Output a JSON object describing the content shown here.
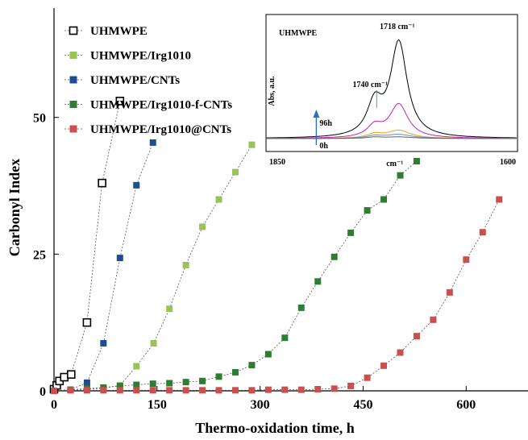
{
  "chart_data": [
    {
      "type": "scatter",
      "title": "",
      "xlabel": "Thermo-oxidation time, h",
      "ylabel": "Carbonyl Index",
      "xlim": [
        0,
        690
      ],
      "ylim": [
        0,
        70
      ],
      "x_ticks": [
        0,
        150,
        300,
        450,
        600
      ],
      "y_ticks": [
        0,
        25,
        50
      ],
      "grid": false,
      "legend_position": "top-left",
      "series": [
        {
          "name": "UHMWPE",
          "color": "#000000",
          "marker": "open-square",
          "points": [
            [
              0,
              0.3
            ],
            [
              4,
              1
            ],
            [
              8,
              1.8
            ],
            [
              15,
              2.5
            ],
            [
              25,
              3
            ],
            [
              48,
              12.5
            ],
            [
              70,
              38
            ],
            [
              96,
              53
            ]
          ]
        },
        {
          "name": "UHMWPE/Irg1010",
          "color": "#99c259",
          "marker": "filled-square",
          "points": [
            [
              0,
              0
            ],
            [
              24,
              0.2
            ],
            [
              48,
              0.3
            ],
            [
              72,
              0.5
            ],
            [
              96,
              1
            ],
            [
              120,
              4.5
            ],
            [
              145,
              8.7
            ],
            [
              168,
              15
            ],
            [
              192,
              23
            ],
            [
              216,
              30
            ],
            [
              240,
              35
            ],
            [
              264,
              40
            ],
            [
              288,
              45
            ]
          ]
        },
        {
          "name": "UHMWPE/CNTs",
          "color": "#1f4e8c",
          "marker": "filled-square",
          "points": [
            [
              0,
              0
            ],
            [
              24,
              0.2
            ],
            [
              48,
              1.5
            ],
            [
              72,
              8.7
            ],
            [
              96,
              24.3
            ],
            [
              120,
              37.6
            ],
            [
              144,
              45.4
            ]
          ]
        },
        {
          "name": "UHMWPE/Irg1010-f-CNTs",
          "color": "#2e7d32",
          "marker": "filled-square",
          "points": [
            [
              0,
              0
            ],
            [
              24,
              0.2
            ],
            [
              48,
              0.4
            ],
            [
              72,
              0.6
            ],
            [
              96,
              0.9
            ],
            [
              120,
              1.1
            ],
            [
              144,
              1.3
            ],
            [
              168,
              1.4
            ],
            [
              192,
              1.6
            ],
            [
              216,
              1.8
            ],
            [
              240,
              2.6
            ],
            [
              264,
              3.4
            ],
            [
              288,
              4.7
            ],
            [
              312,
              6.7
            ],
            [
              336,
              9.7
            ],
            [
              360,
              15.2
            ],
            [
              384,
              20
            ],
            [
              408,
              24.5
            ],
            [
              432,
              28.9
            ],
            [
              456,
              33
            ],
            [
              480,
              35
            ],
            [
              504,
              39.4
            ],
            [
              528,
              42
            ]
          ]
        },
        {
          "name": "UHMWPE/Irg1010@CNTs",
          "color": "#c9504e",
          "marker": "filled-square",
          "points": [
            [
              0,
              0
            ],
            [
              24,
              0.1
            ],
            [
              48,
              0.1
            ],
            [
              72,
              0.1
            ],
            [
              96,
              0.1
            ],
            [
              120,
              0.1
            ],
            [
              144,
              0.1
            ],
            [
              168,
              0.1
            ],
            [
              192,
              0.1
            ],
            [
              216,
              0.1
            ],
            [
              240,
              0.1
            ],
            [
              264,
              0.1
            ],
            [
              288,
              0.1
            ],
            [
              312,
              0.2
            ],
            [
              336,
              0.2
            ],
            [
              360,
              0.2
            ],
            [
              384,
              0.3
            ],
            [
              408,
              0.4
            ],
            [
              432,
              0.9
            ],
            [
              456,
              2.4
            ],
            [
              480,
              4.6
            ],
            [
              504,
              7
            ],
            [
              528,
              10
            ],
            [
              552,
              13
            ],
            [
              576,
              18
            ],
            [
              600,
              24
            ],
            [
              624,
              29
            ],
            [
              648,
              35
            ]
          ]
        }
      ]
    },
    {
      "type": "line",
      "title": "UHMWPE",
      "xlabel": "cm⁻¹",
      "ylabel": "Abs, a.u.",
      "x_axis_reversed": true,
      "xlim": [
        1850,
        1600
      ],
      "x_tick_labels": [
        "1850",
        "1600"
      ],
      "annotations": [
        {
          "text": "1718 cm⁻¹",
          "x": 1718
        },
        {
          "text": "1740 cm⁻¹",
          "x": 1740
        },
        {
          "text": "96h"
        },
        {
          "text": "0h"
        }
      ],
      "series_colors": [
        "#000000",
        "#c020c0",
        "#f0a020",
        "#5090d0",
        "#606060"
      ]
    }
  ]
}
